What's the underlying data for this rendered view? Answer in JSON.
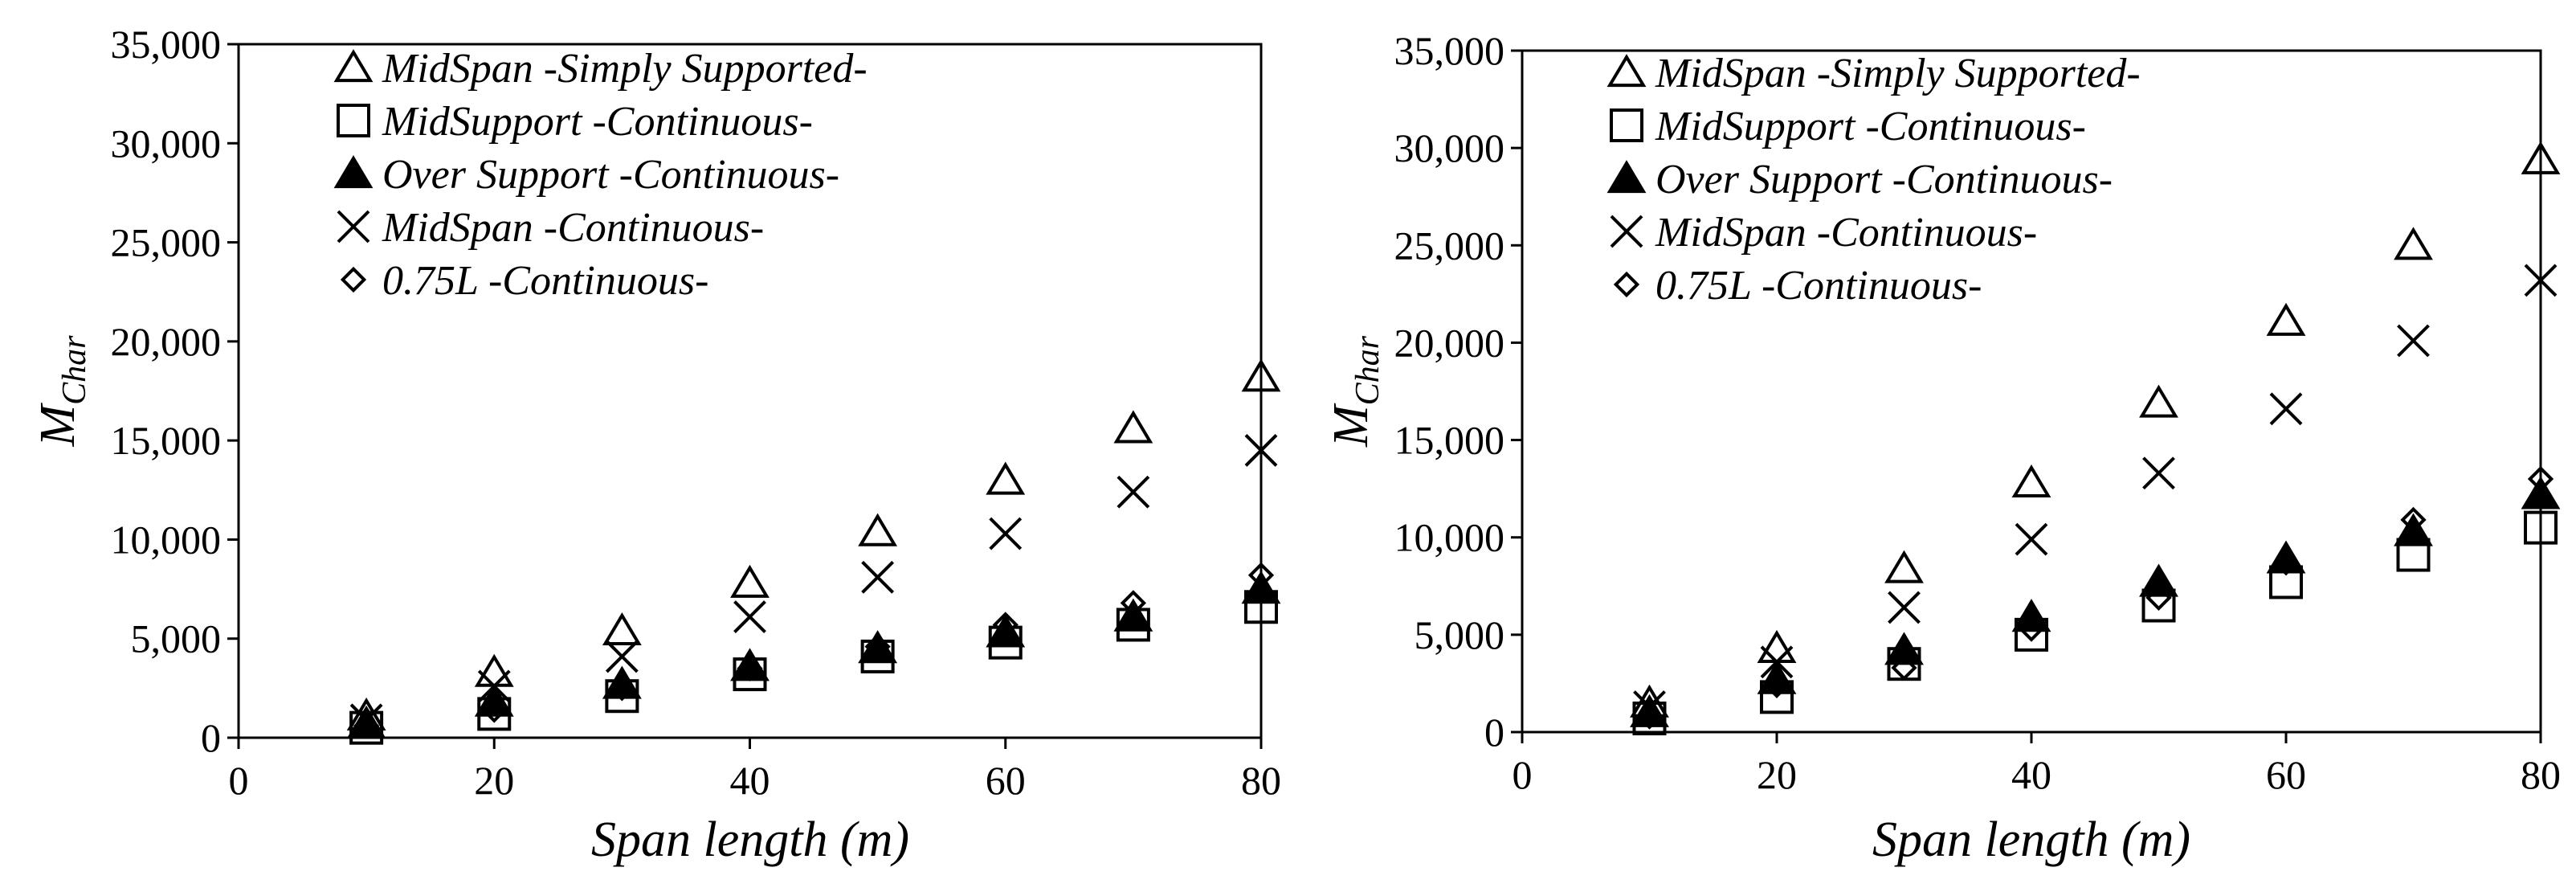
{
  "chart_data": [
    {
      "type": "scatter",
      "xlabel": "Span length (m)",
      "ylabel_main": "M",
      "ylabel_sub": "Char",
      "xlim": [
        0,
        80
      ],
      "ylim": [
        0,
        35000
      ],
      "xticks": [
        "0",
        "20",
        "40",
        "60",
        "80"
      ],
      "yticks": [
        "0",
        "5,000",
        "10,000",
        "15,000",
        "20,000",
        "25,000",
        "30,000",
        "35,000"
      ],
      "legend_position": "top-left",
      "series": [
        {
          "name": "MidSpan -Simply Supported-",
          "marker": "triangle-open",
          "x": [
            10,
            20,
            30,
            40,
            50,
            60,
            70,
            80
          ],
          "y": [
            1100,
            3300,
            5400,
            7800,
            10400,
            13000,
            15600,
            18200
          ]
        },
        {
          "name": "MidSupport -Continuous-",
          "marker": "square-open",
          "x": [
            10,
            20,
            30,
            40,
            50,
            60,
            70,
            80
          ],
          "y": [
            500,
            1200,
            2100,
            3200,
            4100,
            4800,
            5700,
            6600
          ]
        },
        {
          "name": "Over Support -Continuous-",
          "marker": "triangle-filled",
          "x": [
            10,
            20,
            30,
            40,
            50,
            60,
            70,
            80
          ],
          "y": [
            700,
            1800,
            2700,
            3600,
            4500,
            5300,
            6100,
            7500
          ]
        },
        {
          "name": "MidSpan -Continuous-",
          "marker": "x",
          "x": [
            10,
            20,
            30,
            40,
            50,
            60,
            70,
            80
          ],
          "y": [
            900,
            2600,
            4100,
            6100,
            8100,
            10300,
            12400,
            14500
          ]
        },
        {
          "name": "0.75L -Continuous-",
          "marker": "diamond-open",
          "x": [
            10,
            20,
            30,
            40,
            50,
            60,
            70,
            80
          ],
          "y": [
            600,
            1400,
            2500,
            3500,
            4600,
            5700,
            6800,
            8200
          ]
        }
      ]
    },
    {
      "type": "scatter",
      "xlabel": "Span length (m)",
      "ylabel_main": "M",
      "ylabel_sub": "Char",
      "xlim": [
        0,
        80
      ],
      "ylim": [
        0,
        35000
      ],
      "xticks": [
        "0",
        "20",
        "40",
        "60",
        "80"
      ],
      "yticks": [
        "0",
        "5,000",
        "10,000",
        "15,000",
        "20,000",
        "25,000",
        "30,000",
        "35,000"
      ],
      "legend_position": "top-left",
      "series": [
        {
          "name": "MidSpan -Simply Supported-",
          "marker": "triangle-open",
          "x": [
            10,
            20,
            30,
            40,
            50,
            60,
            70,
            80
          ],
          "y": [
            1500,
            4300,
            8400,
            12800,
            16900,
            21100,
            25000,
            29400
          ]
        },
        {
          "name": "MidSupport -Continuous-",
          "marker": "square-open",
          "x": [
            10,
            20,
            30,
            40,
            50,
            60,
            70,
            80
          ],
          "y": [
            700,
            1800,
            3500,
            5000,
            6500,
            7700,
            9100,
            10500
          ]
        },
        {
          "name": "Over Support -Continuous-",
          "marker": "triangle-filled",
          "x": [
            10,
            20,
            30,
            40,
            50,
            60,
            70,
            80
          ],
          "y": [
            1000,
            2700,
            4200,
            5900,
            7700,
            8900,
            10300,
            12200
          ]
        },
        {
          "name": "MidSpan -Continuous-",
          "marker": "x",
          "x": [
            10,
            20,
            30,
            40,
            50,
            60,
            70,
            80
          ],
          "y": [
            1300,
            3600,
            6400,
            9900,
            13300,
            16600,
            20100,
            23200
          ]
        },
        {
          "name": "0.75L -Continuous-",
          "marker": "diamond-open",
          "x": [
            10,
            20,
            30,
            40,
            50,
            60,
            70,
            80
          ],
          "y": [
            800,
            2400,
            3300,
            5300,
            6900,
            8700,
            10900,
            13000
          ]
        }
      ]
    }
  ]
}
